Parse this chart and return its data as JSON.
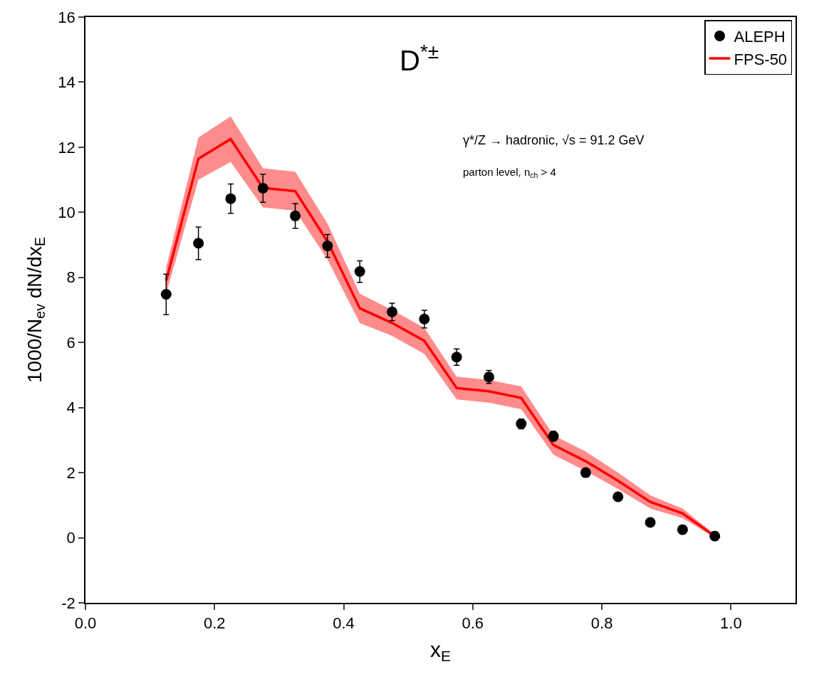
{
  "chart_data": {
    "type": "scatter",
    "xlabel": "x$_{E}$",
    "ylabel": "1000/N$_{ev}$ dN/dx$_{E}$",
    "x": [
      0.125,
      0.175,
      0.225,
      0.275,
      0.325,
      0.375,
      0.425,
      0.475,
      0.525,
      0.575,
      0.625,
      0.675,
      0.725,
      0.775,
      0.825,
      0.875,
      0.925,
      0.975
    ],
    "series": [
      {
        "name": "ALEPH",
        "type": "scatter",
        "color": "#000000",
        "marker": "circle",
        "values": [
          7.48,
          9.05,
          10.42,
          10.74,
          9.89,
          8.97,
          8.18,
          6.94,
          6.72,
          5.55,
          4.94,
          3.5,
          3.12,
          2.0,
          1.26,
          0.47,
          0.25,
          0.05
        ],
        "errors": [
          0.62,
          0.5,
          0.45,
          0.43,
          0.38,
          0.35,
          0.33,
          0.27,
          0.27,
          0.25,
          0.2,
          0.15,
          0.15,
          null,
          null,
          null,
          null,
          null
        ]
      },
      {
        "name": "FPS-50",
        "type": "line",
        "color": "#ff0000",
        "line_style": "solid",
        "values": [
          7.9,
          11.65,
          12.25,
          10.75,
          10.65,
          9.1,
          7.05,
          6.6,
          6.05,
          4.6,
          4.5,
          4.3,
          2.85,
          2.35,
          1.75,
          1.1,
          0.75,
          0.05
        ],
        "lower": [
          7.5,
          11.0,
          11.55,
          10.15,
          10.05,
          8.55,
          6.6,
          6.2,
          5.65,
          4.25,
          4.15,
          3.95,
          2.55,
          2.05,
          1.5,
          0.9,
          0.6,
          0.0
        ],
        "upper": [
          8.3,
          12.3,
          12.95,
          11.35,
          11.25,
          9.65,
          7.5,
          7.0,
          6.45,
          4.95,
          4.85,
          4.65,
          3.15,
          2.65,
          2.0,
          1.3,
          0.9,
          0.1
        ]
      }
    ],
    "xlim": [
      0,
      1.1
    ],
    "ylim": [
      -2,
      16
    ],
    "xticks": [
      {
        "value": 0,
        "label": "0.0"
      },
      {
        "value": 0.2,
        "label": "0.2"
      },
      {
        "value": 0.4,
        "label": "0.4"
      },
      {
        "value": 0.6,
        "label": "0.6"
      },
      {
        "value": 0.8,
        "label": "0.8"
      },
      {
        "value": 1.0,
        "label": "1.0"
      }
    ],
    "yticks": [
      -2,
      0,
      2,
      4,
      6,
      8,
      10,
      12,
      14,
      16
    ],
    "legend": "top right",
    "annotations": [
      "D$^{*±}$",
      "γ*/Z → hadronic, √s = 91.2 GeV",
      "parton level, n$_{ch}$ > 4"
    ]
  }
}
